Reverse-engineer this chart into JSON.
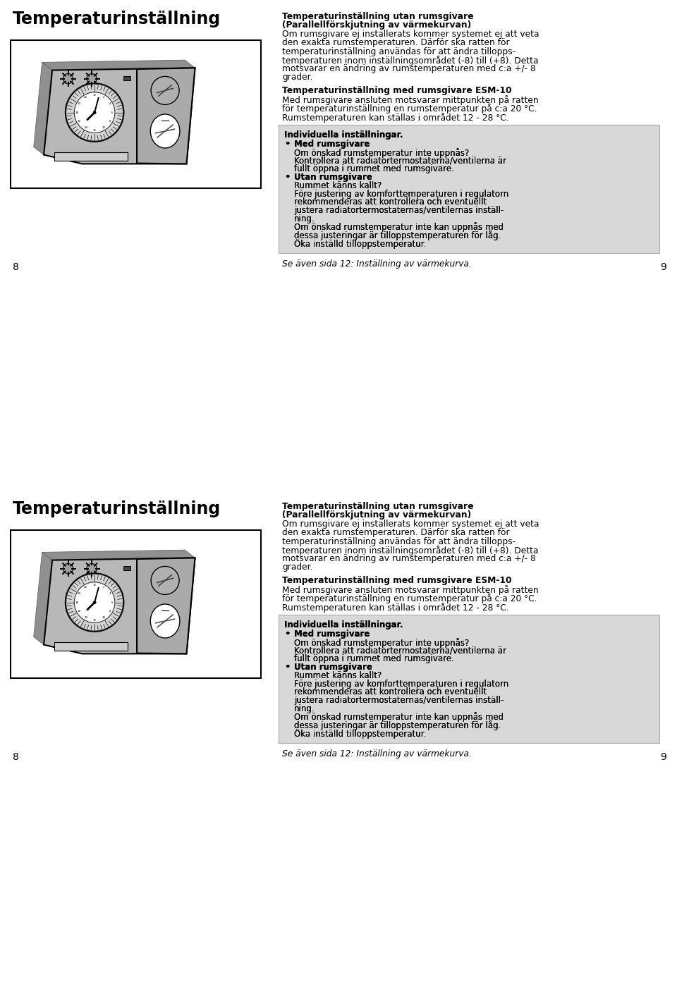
{
  "title": "Temperaturinställning",
  "page_left": "8",
  "page_right": "9",
  "heading1": "Temperaturinställning utan rumsgivare",
  "heading1b": "(Parallellförskjutning av värmekurvan)",
  "para1_lines": [
    "Om rumsgivare ej installerats kommer systemet ej att veta",
    "den exakta rumstemperaturen. Därför ska ratten för",
    "temperaturinställning användas för att ändra tillopps-",
    "temperaturen inom inställningsområdet (-8) till (+8). Detta",
    "motsvarar en ändring av rumstemperaturen med c:a +/- 8",
    "grader."
  ],
  "heading2": "Temperaturinställning med rumsgivare ESM-10",
  "para2_lines": [
    "Med rumsgivare ansluten motsvarar mittpunkten på ratten",
    "för temperaturinställning en rumstemperatur på c:a 20 °C.",
    "Rumstemperaturen kan ställas i området 12 - 28 °C."
  ],
  "box_heading": "Individuella inställningar.",
  "bullet1_bold": "Med rumsgivare",
  "bullet1_lines": [
    "Om önskad rumstemperatur inte uppnås?",
    "Kontrollera att radiatortermostaterna/ventilerna är",
    "fullt öppna i rummet med rumsgivare."
  ],
  "bullet2_bold": "Utan rumsgivare",
  "bullet2_lines": [
    "Rummet känns kallt?",
    "Före justering av komforttemperaturen i regulatorn",
    "rekommenderas att kontrollera och eventuellt",
    "justera radiatortermostaternas/ventilernas inställ-",
    "ning.",
    "Om önskad rumstemperatur inte kan uppnås med",
    "dessa justeringar är tilloppstemperaturen för låg.",
    "Öka inställd tilloppstemperatur."
  ],
  "footer": "Se även sida 12: Inställning av värmekurva.",
  "bg": "#ffffff",
  "box_bg": "#d8d8d8",
  "device_body": "#b8b8b8",
  "device_dark": "#404040",
  "device_mid": "#c8c8c8"
}
